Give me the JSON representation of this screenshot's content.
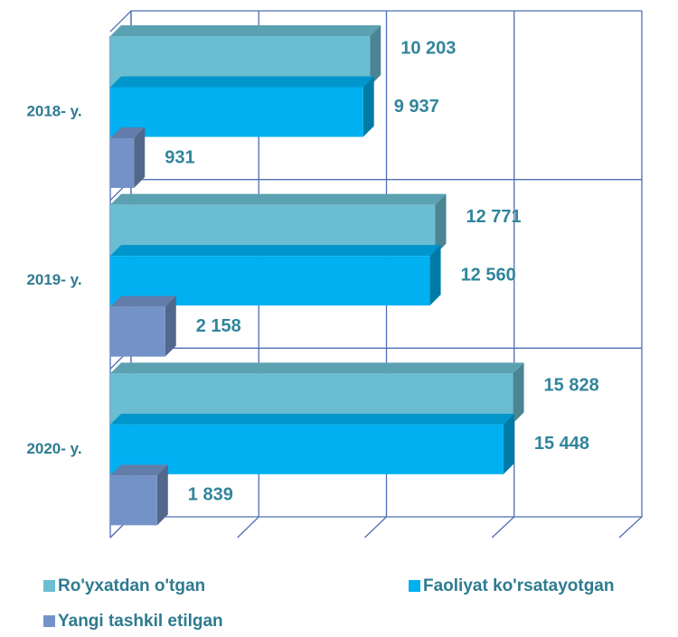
{
  "chart_data": {
    "type": "bar3d_horizontal",
    "categories": [
      "2018- y.",
      "2019- y.",
      "2020- y."
    ],
    "series": [
      {
        "name": "Ro'yxatdan o'tgan",
        "color": "#6bbdd1",
        "values": [
          10203,
          12771,
          15828
        ],
        "value_labels": [
          "10 203",
          "12 771",
          "15 828"
        ]
      },
      {
        "name": "Faoliyat ko'rsatayotgan",
        "color": "#00b0f0",
        "values": [
          9937,
          12560,
          15448
        ],
        "value_labels": [
          "9 937",
          "12 560",
          "15 448"
        ]
      },
      {
        "name": "Yangi tashkil etilgan",
        "color": "#7393c8",
        "values": [
          931,
          2158,
          1839
        ],
        "value_labels": [
          "931",
          "2 158",
          "1 839"
        ]
      }
    ],
    "xlim": [
      0,
      20000
    ],
    "xticks": [
      0,
      5000,
      10000,
      15000,
      20000
    ],
    "grid": true,
    "legend": "bottom"
  }
}
